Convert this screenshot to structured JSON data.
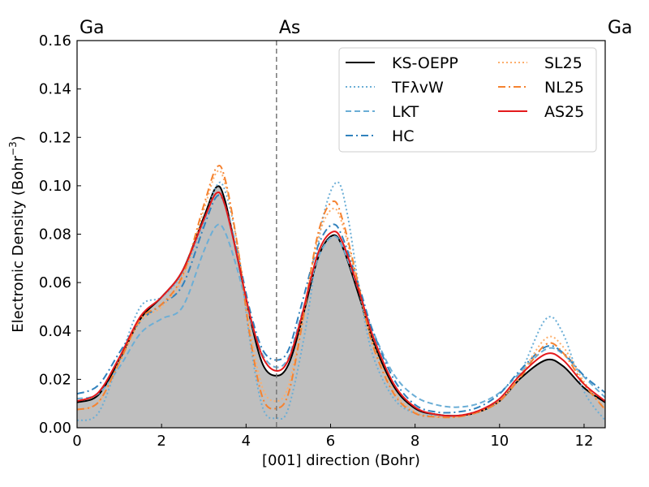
{
  "chart_data": {
    "type": "line",
    "xlabel": "[001] direction (Bohr)",
    "ylabel_main": "Electronic Density (Bohr",
    "ylabel_exp": "−3",
    "ylabel_close": ")",
    "xlim": [
      0,
      12.5
    ],
    "ylim": [
      0,
      0.16
    ],
    "x_ticks": [
      "0",
      "2",
      "4",
      "6",
      "8",
      "10",
      "12"
    ],
    "y_ticks": [
      "0.00",
      "0.02",
      "0.04",
      "0.06",
      "0.08",
      "0.10",
      "0.12",
      "0.14",
      "0.16"
    ],
    "atom_marker": 4.72,
    "atom_labels": [
      {
        "text": "Ga",
        "x": 0
      },
      {
        "text": "As",
        "x": 4.72
      },
      {
        "text": "Ga",
        "x": 12.5
      }
    ],
    "legend_position": "top-right",
    "reference_fill": "#bfbfbf",
    "series": [
      {
        "name": "KS-OEPP",
        "color": "#000000",
        "dash": "solid",
        "width": 2,
        "fill": true,
        "points": [
          [
            0,
            0.0105
          ],
          [
            0.5,
            0.0135
          ],
          [
            1,
            0.028
          ],
          [
            1.5,
            0.045
          ],
          [
            2,
            0.054
          ],
          [
            2.5,
            0.065
          ],
          [
            3,
            0.087
          ],
          [
            3.3,
            0.0995
          ],
          [
            3.5,
            0.094
          ],
          [
            3.8,
            0.07
          ],
          [
            4.1,
            0.045
          ],
          [
            4.4,
            0.026
          ],
          [
            4.72,
            0.0215
          ],
          [
            5,
            0.026
          ],
          [
            5.3,
            0.043
          ],
          [
            5.7,
            0.07
          ],
          [
            6.05,
            0.0795
          ],
          [
            6.3,
            0.074
          ],
          [
            6.7,
            0.053
          ],
          [
            7,
            0.036
          ],
          [
            7.5,
            0.017
          ],
          [
            8,
            0.008
          ],
          [
            8.5,
            0.0055
          ],
          [
            9,
            0.005
          ],
          [
            9.5,
            0.0065
          ],
          [
            10,
            0.011
          ],
          [
            10.5,
            0.0205
          ],
          [
            11.1,
            0.028
          ],
          [
            11.5,
            0.0255
          ],
          [
            12,
            0.0165
          ],
          [
            12.5,
            0.0105
          ]
        ]
      },
      {
        "name": "TFλvW",
        "color": "#6baed6",
        "dash": "dotted",
        "width": 2,
        "points": [
          [
            0,
            0.003
          ],
          [
            0.5,
            0.006
          ],
          [
            1,
            0.028
          ],
          [
            1.5,
            0.05
          ],
          [
            2,
            0.054
          ],
          [
            2.5,
            0.064
          ],
          [
            3,
            0.085
          ],
          [
            3.3,
            0.1
          ],
          [
            3.5,
            0.098
          ],
          [
            3.8,
            0.075
          ],
          [
            4.1,
            0.035
          ],
          [
            4.4,
            0.008
          ],
          [
            4.72,
            0.004
          ],
          [
            5,
            0.008
          ],
          [
            5.4,
            0.04
          ],
          [
            5.8,
            0.085
          ],
          [
            6.15,
            0.1015
          ],
          [
            6.4,
            0.088
          ],
          [
            6.7,
            0.055
          ],
          [
            7,
            0.03
          ],
          [
            7.5,
            0.012
          ],
          [
            8,
            0.006
          ],
          [
            8.5,
            0.005
          ],
          [
            9,
            0.005
          ],
          [
            9.5,
            0.007
          ],
          [
            10,
            0.011
          ],
          [
            10.5,
            0.023
          ],
          [
            11.1,
            0.045
          ],
          [
            11.5,
            0.039
          ],
          [
            12,
            0.015
          ],
          [
            12.5,
            0.003
          ]
        ]
      },
      {
        "name": "LKT",
        "color": "#6baed6",
        "dash": "dashed",
        "width": 2,
        "points": [
          [
            0,
            0.012
          ],
          [
            0.5,
            0.014
          ],
          [
            1,
            0.025
          ],
          [
            1.5,
            0.039
          ],
          [
            2,
            0.045
          ],
          [
            2.5,
            0.05
          ],
          [
            3,
            0.073
          ],
          [
            3.3,
            0.0835
          ],
          [
            3.5,
            0.081
          ],
          [
            3.8,
            0.065
          ],
          [
            4.1,
            0.045
          ],
          [
            4.4,
            0.03
          ],
          [
            4.72,
            0.025
          ],
          [
            5,
            0.029
          ],
          [
            5.3,
            0.046
          ],
          [
            5.7,
            0.07
          ],
          [
            6.05,
            0.079
          ],
          [
            6.3,
            0.074
          ],
          [
            6.7,
            0.055
          ],
          [
            7,
            0.04
          ],
          [
            7.5,
            0.022
          ],
          [
            8,
            0.013
          ],
          [
            8.5,
            0.0095
          ],
          [
            9,
            0.0085
          ],
          [
            9.5,
            0.01
          ],
          [
            10,
            0.0145
          ],
          [
            10.5,
            0.023
          ],
          [
            11.1,
            0.0325
          ],
          [
            11.5,
            0.0305
          ],
          [
            12,
            0.021
          ],
          [
            12.5,
            0.0125
          ]
        ]
      },
      {
        "name": "HC",
        "color": "#3182bd",
        "dash": "dashdot",
        "width": 2,
        "points": [
          [
            0,
            0.014
          ],
          [
            0.5,
            0.0175
          ],
          [
            1,
            0.031
          ],
          [
            1.5,
            0.044
          ],
          [
            2,
            0.051
          ],
          [
            2.5,
            0.059
          ],
          [
            3,
            0.083
          ],
          [
            3.3,
            0.0955
          ],
          [
            3.5,
            0.092
          ],
          [
            3.8,
            0.072
          ],
          [
            4.1,
            0.048
          ],
          [
            4.4,
            0.032
          ],
          [
            4.72,
            0.028
          ],
          [
            5,
            0.032
          ],
          [
            5.3,
            0.05
          ],
          [
            5.7,
            0.075
          ],
          [
            6.05,
            0.084
          ],
          [
            6.3,
            0.078
          ],
          [
            6.7,
            0.057
          ],
          [
            7,
            0.04
          ],
          [
            7.5,
            0.02
          ],
          [
            8,
            0.0095
          ],
          [
            8.5,
            0.0065
          ],
          [
            9,
            0.0065
          ],
          [
            9.5,
            0.0085
          ],
          [
            10,
            0.014
          ],
          [
            10.5,
            0.024
          ],
          [
            11.1,
            0.0335
          ],
          [
            11.5,
            0.031
          ],
          [
            12,
            0.0215
          ],
          [
            12.5,
            0.0145
          ]
        ]
      },
      {
        "name": "SL25",
        "color": "#fdae6b",
        "dash": "dotted",
        "width": 2,
        "points": [
          [
            0,
            0.0075
          ],
          [
            0.5,
            0.0105
          ],
          [
            1,
            0.027
          ],
          [
            1.5,
            0.044
          ],
          [
            2,
            0.05
          ],
          [
            2.5,
            0.062
          ],
          [
            3,
            0.09
          ],
          [
            3.3,
            0.1055
          ],
          [
            3.5,
            0.101
          ],
          [
            3.8,
            0.075
          ],
          [
            4.1,
            0.04
          ],
          [
            4.4,
            0.016
          ],
          [
            4.72,
            0.011
          ],
          [
            5,
            0.017
          ],
          [
            5.3,
            0.042
          ],
          [
            5.7,
            0.078
          ],
          [
            6.05,
            0.0905
          ],
          [
            6.3,
            0.083
          ],
          [
            6.7,
            0.055
          ],
          [
            7,
            0.035
          ],
          [
            7.5,
            0.015
          ],
          [
            8,
            0.0065
          ],
          [
            8.5,
            0.0045
          ],
          [
            9,
            0.0045
          ],
          [
            9.5,
            0.0065
          ],
          [
            10,
            0.011
          ],
          [
            10.5,
            0.022
          ],
          [
            11.1,
            0.037
          ],
          [
            11.5,
            0.0335
          ],
          [
            12,
            0.019
          ],
          [
            12.5,
            0.0075
          ]
        ]
      },
      {
        "name": "NL25",
        "color": "#f58230",
        "dash": "dashdot",
        "width": 2,
        "points": [
          [
            0,
            0.0075
          ],
          [
            0.5,
            0.0105
          ],
          [
            1,
            0.027
          ],
          [
            1.5,
            0.045
          ],
          [
            2,
            0.051
          ],
          [
            2.5,
            0.063
          ],
          [
            3,
            0.092
          ],
          [
            3.3,
            0.1075
          ],
          [
            3.5,
            0.103
          ],
          [
            3.8,
            0.075
          ],
          [
            4.1,
            0.037
          ],
          [
            4.4,
            0.012
          ],
          [
            4.72,
            0.008
          ],
          [
            5,
            0.014
          ],
          [
            5.3,
            0.04
          ],
          [
            5.7,
            0.08
          ],
          [
            6.05,
            0.0935
          ],
          [
            6.3,
            0.085
          ],
          [
            6.7,
            0.056
          ],
          [
            7,
            0.034
          ],
          [
            7.5,
            0.014
          ],
          [
            8,
            0.006
          ],
          [
            8.5,
            0.0045
          ],
          [
            9,
            0.0045
          ],
          [
            9.5,
            0.0065
          ],
          [
            10,
            0.011
          ],
          [
            10.5,
            0.021
          ],
          [
            11.1,
            0.0345
          ],
          [
            11.5,
            0.031
          ],
          [
            12,
            0.018
          ],
          [
            12.5,
            0.0075
          ]
        ]
      },
      {
        "name": "AS25",
        "color": "#e41a1c",
        "dash": "solid",
        "width": 2,
        "points": [
          [
            0,
            0.011
          ],
          [
            0.5,
            0.0145
          ],
          [
            1,
            0.029
          ],
          [
            1.5,
            0.046
          ],
          [
            2,
            0.054
          ],
          [
            2.5,
            0.065
          ],
          [
            3,
            0.086
          ],
          [
            3.3,
            0.097
          ],
          [
            3.5,
            0.092
          ],
          [
            3.8,
            0.07
          ],
          [
            4.1,
            0.046
          ],
          [
            4.4,
            0.029
          ],
          [
            4.72,
            0.0235
          ],
          [
            5,
            0.028
          ],
          [
            5.3,
            0.045
          ],
          [
            5.7,
            0.072
          ],
          [
            6.05,
            0.081
          ],
          [
            6.3,
            0.076
          ],
          [
            6.7,
            0.055
          ],
          [
            7,
            0.038
          ],
          [
            7.5,
            0.018
          ],
          [
            8,
            0.0085
          ],
          [
            8.5,
            0.0055
          ],
          [
            9,
            0.005
          ],
          [
            9.5,
            0.007
          ],
          [
            10,
            0.012
          ],
          [
            10.5,
            0.022
          ],
          [
            11.1,
            0.0305
          ],
          [
            11.5,
            0.028
          ],
          [
            12,
            0.018
          ],
          [
            12.5,
            0.011
          ]
        ]
      }
    ]
  }
}
